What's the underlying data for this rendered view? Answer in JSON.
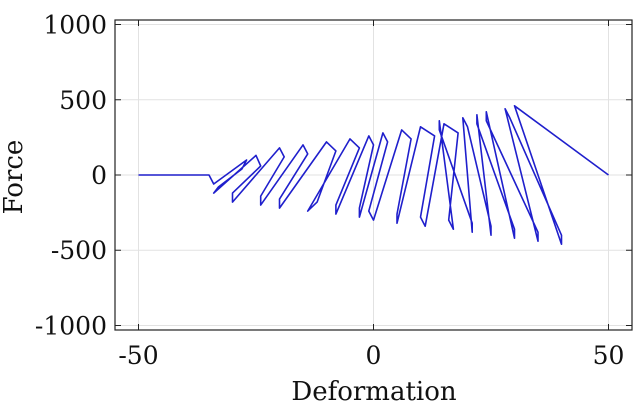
{
  "chart_data": {
    "type": "line",
    "title": "",
    "xlabel": "Deformation",
    "ylabel": "Force",
    "xlim": [
      -55,
      55
    ],
    "ylim": [
      -1030,
      1030
    ],
    "xticks": [
      -50,
      0,
      50
    ],
    "xtick_labels": [
      "-50",
      "0",
      "50"
    ],
    "yticks": [
      -1000,
      -500,
      0,
      500,
      1000
    ],
    "ytick_labels": [
      "-1000",
      "-500",
      "0",
      "500",
      "1000"
    ],
    "grid": true,
    "line_color": "#1f1fcc",
    "series": [
      {
        "x": [
          -50,
          -40,
          -35,
          -34,
          -27,
          -28,
          -33,
          -34,
          -25,
          -24,
          -30,
          -30,
          -20,
          -19,
          -24,
          -24,
          -15,
          -14,
          -20,
          -20,
          -10,
          -8,
          -12,
          -14,
          -5,
          -3,
          -8,
          -8,
          -1,
          0,
          -3,
          -3,
          2,
          3,
          -1,
          0,
          6,
          8,
          5,
          5,
          10,
          13,
          10,
          11,
          15,
          18,
          16,
          17,
          14,
          14,
          21,
          21,
          19,
          20,
          25,
          25,
          22,
          22,
          30,
          30,
          24,
          24,
          35,
          35,
          28,
          29,
          40,
          40,
          30,
          50
        ],
        "y": [
          0,
          0,
          0,
          -60,
          100,
          40,
          -80,
          -120,
          130,
          60,
          -120,
          -180,
          180,
          120,
          -140,
          -200,
          200,
          140,
          -160,
          -220,
          220,
          160,
          -180,
          -240,
          240,
          180,
          -200,
          -260,
          260,
          200,
          -220,
          -280,
          280,
          220,
          -240,
          -300,
          300,
          240,
          -260,
          -320,
          320,
          260,
          -280,
          -340,
          340,
          280,
          -300,
          -360,
          360,
          300,
          -320,
          -380,
          380,
          320,
          -340,
          -400,
          400,
          340,
          -360,
          -420,
          420,
          360,
          -380,
          -440,
          440,
          380,
          -400,
          -460,
          460,
          0
        ]
      }
    ]
  }
}
